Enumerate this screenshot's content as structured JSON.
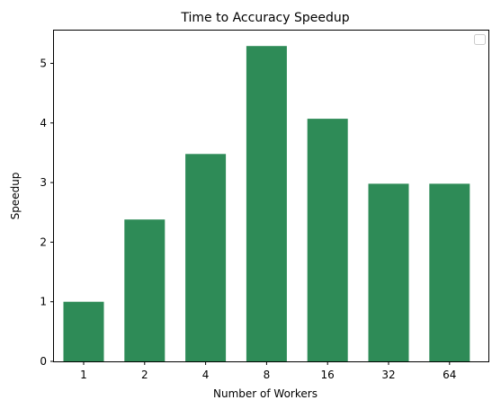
{
  "chart_data": {
    "type": "bar",
    "title": "Time to Accuracy Speedup",
    "xlabel": "Number of Workers",
    "ylabel": "Speedup",
    "categories": [
      "1",
      "2",
      "4",
      "8",
      "16",
      "32",
      "64"
    ],
    "values": [
      1.0,
      2.38,
      3.48,
      5.29,
      4.07,
      2.98,
      2.98
    ],
    "ylim": [
      0,
      5.55
    ],
    "yticks": [
      "0",
      "1",
      "2",
      "3",
      "4",
      "5"
    ],
    "bar_color": "#2e8b57",
    "grid": false,
    "legend": {
      "placement": "upper-right",
      "entries": []
    }
  }
}
